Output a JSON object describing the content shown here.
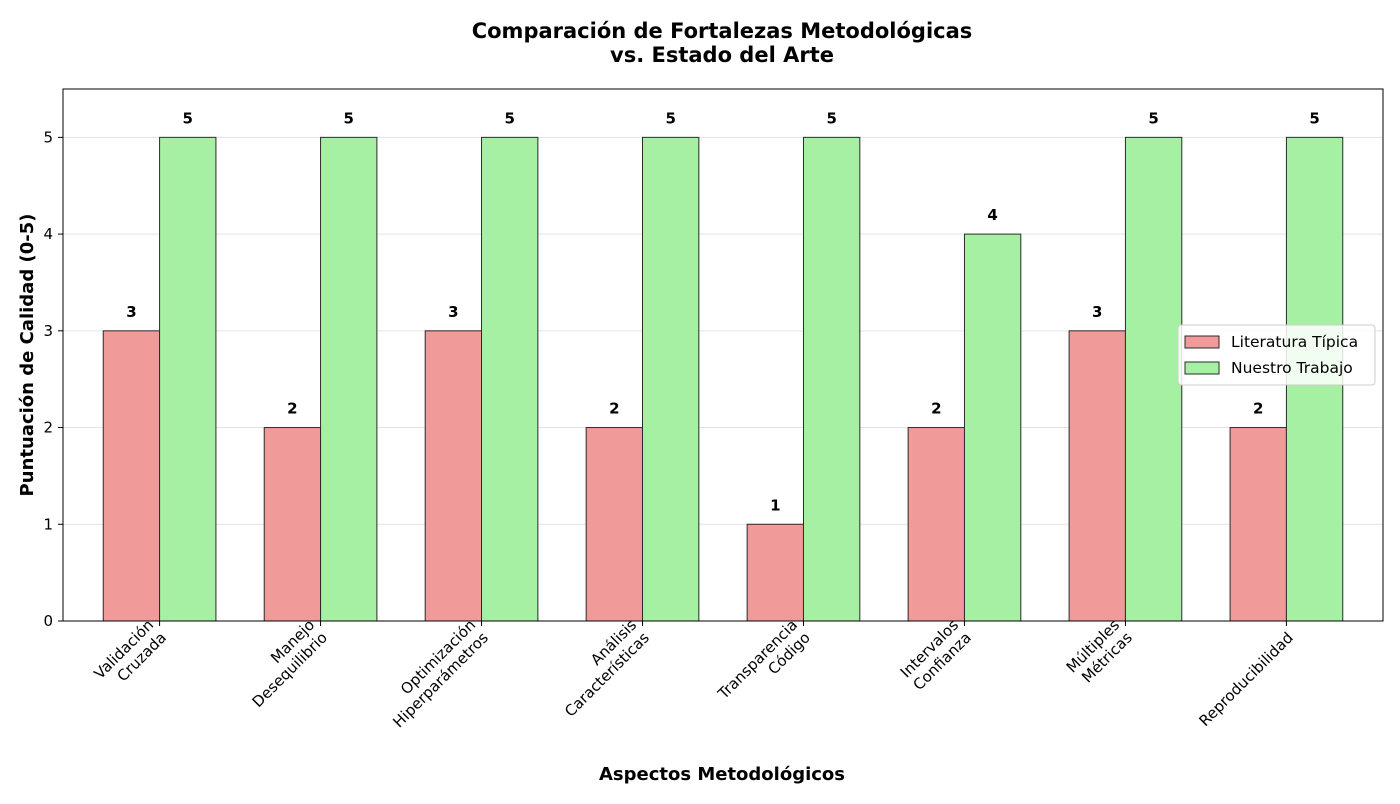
{
  "chart_data": {
    "type": "bar",
    "title": [
      "Comparación de Fortalezas Metodológicas",
      "vs. Estado del Arte"
    ],
    "xlabel": "Aspectos Metodológicos",
    "ylabel": "Puntuación de Calidad (0-5)",
    "ylim": [
      0,
      5.5
    ],
    "yticks": [
      0,
      1,
      2,
      3,
      4,
      5
    ],
    "grid": "horizontal",
    "legend_position": "center-right",
    "categories": [
      [
        "Validación",
        "Cruzada"
      ],
      [
        "Manejo",
        "Desequilibrio"
      ],
      [
        "Optimización",
        "Hiperparámetros"
      ],
      [
        "Análisis",
        "Características"
      ],
      [
        "Transparencia",
        "Código"
      ],
      [
        "Intervalos",
        "Confianza"
      ],
      [
        "Múltiples",
        "Métricas"
      ],
      [
        "Reproducibilidad"
      ]
    ],
    "series": [
      {
        "name": "Literatura Típica",
        "color": "#f09a9a",
        "values": [
          3,
          2,
          3,
          2,
          1,
          2,
          3,
          2
        ]
      },
      {
        "name": "Nuestro Trabajo",
        "color": "#a6f0a3",
        "values": [
          5,
          5,
          5,
          5,
          5,
          4,
          5,
          5
        ]
      }
    ]
  }
}
